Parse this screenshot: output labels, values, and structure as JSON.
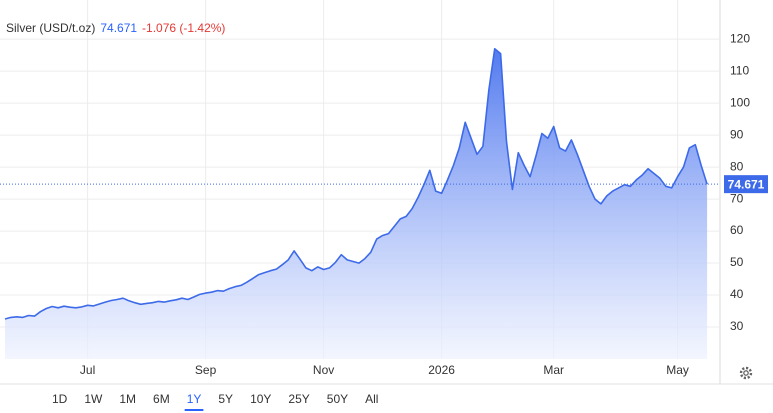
{
  "header": {
    "title": "Silver (USD/t.oz)",
    "price": "74.671",
    "change": "-1.076 (-1.42%)"
  },
  "chart_data": {
    "type": "area",
    "categories": [
      null,
      null,
      null,
      null,
      null,
      null,
      null,
      null,
      null,
      null,
      null,
      null,
      null,
      null,
      "Jul",
      null,
      null,
      null,
      null,
      null,
      null,
      null,
      null,
      null,
      null,
      null,
      null,
      null,
      null,
      null,
      null,
      null,
      null,
      null,
      "Sep",
      null,
      null,
      null,
      null,
      null,
      null,
      null,
      null,
      null,
      null,
      null,
      null,
      null,
      null,
      null,
      null,
      null,
      null,
      null,
      "Nov",
      null,
      null,
      null,
      null,
      null,
      null,
      null,
      null,
      null,
      null,
      null,
      null,
      null,
      null,
      null,
      null,
      null,
      null,
      null,
      "2026",
      null,
      null,
      null,
      null,
      null,
      null,
      null,
      null,
      null,
      null,
      null,
      null,
      null,
      null,
      null,
      null,
      null,
      null,
      "Mar",
      null,
      null,
      null,
      null,
      null,
      null,
      null,
      null,
      null,
      null,
      null,
      null,
      null,
      null,
      null,
      null,
      null,
      null,
      null,
      null,
      "May",
      null,
      null,
      null,
      null,
      null
    ],
    "series": [
      {
        "color": "#3d6ae8",
        "values": [
          32.5,
          33.0,
          33.2,
          33.0,
          33.6,
          33.4,
          34.8,
          35.8,
          36.4,
          36.0,
          36.5,
          36.2,
          36.0,
          36.3,
          36.8,
          36.6,
          37.2,
          37.8,
          38.3,
          38.6,
          39.0,
          38.2,
          37.6,
          37.1,
          37.4,
          37.6,
          38.0,
          37.8,
          38.2,
          38.5,
          39.0,
          38.6,
          39.4,
          40.2,
          40.6,
          40.9,
          41.4,
          41.2,
          42.0,
          42.6,
          43.0,
          44.0,
          45.2,
          46.4,
          47.0,
          47.6,
          48.1,
          49.5,
          51.0,
          53.8,
          51.2,
          48.5,
          47.6,
          48.8,
          48.0,
          48.5,
          50.2,
          52.6,
          51.0,
          50.5,
          50.0,
          51.4,
          53.4,
          57.5,
          58.6,
          59.2,
          61.5,
          63.8,
          64.6,
          67.0,
          70.5,
          74.5,
          79.0,
          72.5,
          71.8,
          76.0,
          80.5,
          86.0,
          94.0,
          89.0,
          84.0,
          86.5,
          104.0,
          117.0,
          115.5,
          88.0,
          73.0,
          84.5,
          80.5,
          77.0,
          83.5,
          90.5,
          89.0,
          92.7,
          86.0,
          85.0,
          88.5,
          84.0,
          79.0,
          74.0,
          70.0,
          68.5,
          71.0,
          72.5,
          73.5,
          74.5,
          74.0,
          76.0,
          77.5,
          79.5,
          78.0,
          76.5,
          74.0,
          73.5,
          77.0,
          80.0,
          86.0,
          87.0,
          80.5,
          74.671
        ]
      }
    ],
    "ylim": [
      20,
      131
    ],
    "yticks": [
      30,
      40,
      50,
      60,
      70,
      80,
      90,
      100,
      110,
      120
    ],
    "grid": true
  },
  "ranges": [
    "1D",
    "1W",
    "1M",
    "6M",
    "1Y",
    "5Y",
    "10Y",
    "25Y",
    "50Y",
    "All"
  ],
  "selected_range": "1Y"
}
